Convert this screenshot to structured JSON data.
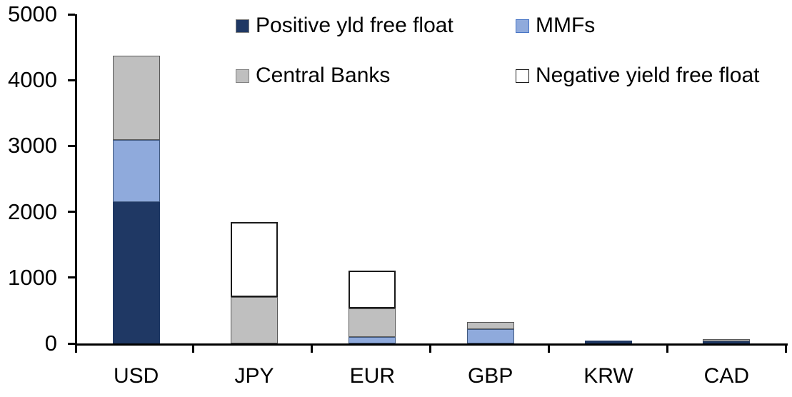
{
  "chart_data": {
    "type": "bar",
    "stacked": true,
    "title": "",
    "xlabel": "",
    "ylabel": "",
    "categories": [
      "USD",
      "JPY",
      "EUR",
      "GBP",
      "KRW",
      "CAD"
    ],
    "series": [
      {
        "name": "Positive yld free float",
        "color": "#1F3864",
        "border": "#1F3864",
        "border_px": 0,
        "values": [
          2150,
          0,
          0,
          0,
          40,
          30
        ]
      },
      {
        "name": "MMFs",
        "color": "#8FAADC",
        "border": "#41597F",
        "border_px": 1,
        "values": [
          940,
          0,
          100,
          220,
          0,
          0
        ]
      },
      {
        "name": "Central Banks",
        "color": "#BFBFBF",
        "border": "#595959",
        "border_px": 1,
        "values": [
          1280,
          700,
          430,
          100,
          0,
          40
        ]
      },
      {
        "name": "Negative yield free float",
        "color": "#FFFFFF",
        "border": "#1A1A1A",
        "border_px": 2,
        "values": [
          0,
          1140,
          580,
          0,
          0,
          0
        ]
      }
    ],
    "totals": [
      4370,
      1840,
      1110,
      320,
      40,
      70
    ],
    "ylim": [
      0,
      5000
    ],
    "ytick_interval": 1000,
    "ytick_labels": [
      "0",
      "1000",
      "2000",
      "3000",
      "4000",
      "5000"
    ],
    "grid": false,
    "legend_position": "top",
    "legend_order": [
      "Positive yld free float",
      "MMFs",
      "Central Banks",
      "Negative yield free float"
    ],
    "axis_color": "#000000",
    "background_color": "#FFFFFF"
  }
}
